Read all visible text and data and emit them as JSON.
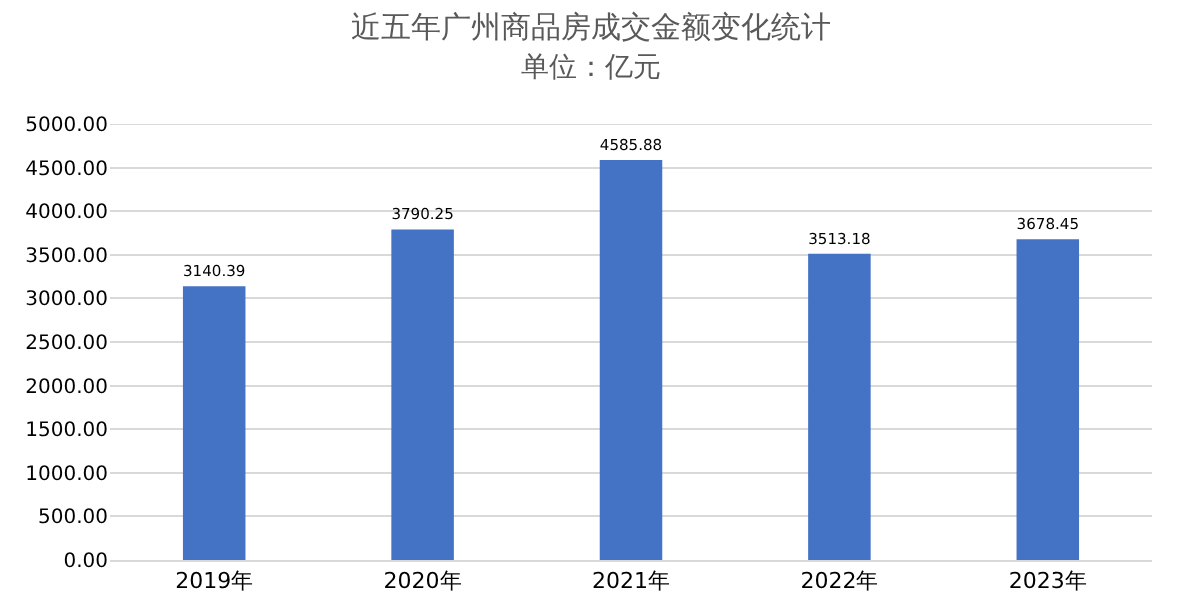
{
  "chart_data": {
    "type": "bar",
    "title": "近五年广州商品房成交金额变化统计",
    "subtitle": "单位：亿元",
    "categories": [
      "2019年",
      "2020年",
      "2021年",
      "2022年",
      "2023年"
    ],
    "values": [
      3140.39,
      3790.25,
      4585.88,
      3513.18,
      3678.45
    ],
    "color": "#4472c4",
    "ylim": [
      0,
      5000
    ],
    "yticks": [
      "0.00",
      "500.00",
      "1000.00",
      "1500.00",
      "2000.00",
      "2500.00",
      "3000.00",
      "3500.00",
      "4000.00",
      "4500.00",
      "5000.00"
    ],
    "value_labels": [
      "3140.39",
      "3790.25",
      "4585.88",
      "3513.18",
      "3678.45"
    ],
    "grid": "y"
  }
}
